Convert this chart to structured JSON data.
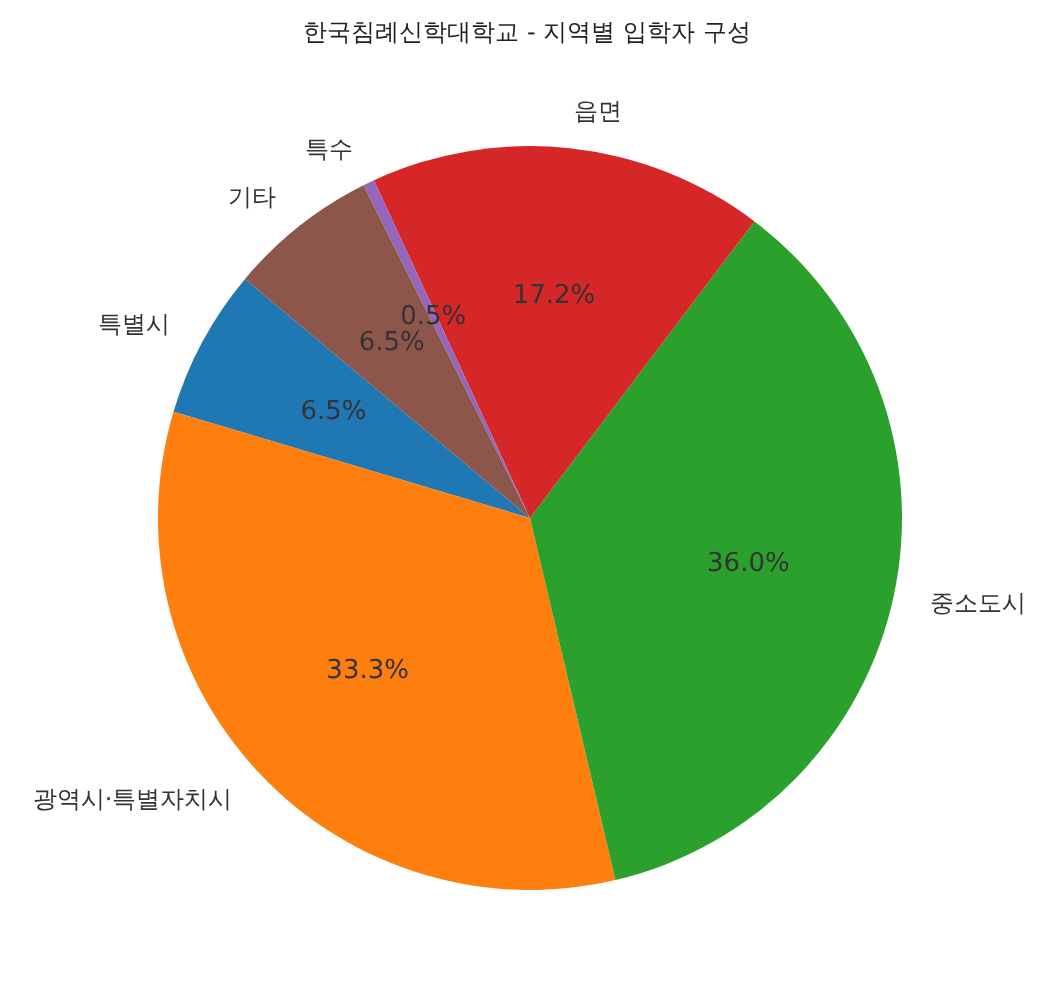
{
  "chart_data": {
    "type": "pie",
    "title": "한국침례신학대학교 - 지역별 입학자 구성",
    "categories": [
      "특별시",
      "광역시·특별자치시",
      "중소도시",
      "읍면",
      "특수",
      "기타"
    ],
    "values": [
      6.5,
      33.3,
      36.0,
      17.2,
      0.5,
      6.5
    ],
    "colors": [
      "#1f77b4",
      "#ff7f0e",
      "#2ca02c",
      "#d62728",
      "#9467bd",
      "#8c564b"
    ],
    "value_labels": [
      "6.5%",
      "33.3%",
      "36.0%",
      "17.2%",
      "0.5%",
      "6.5%"
    ]
  }
}
